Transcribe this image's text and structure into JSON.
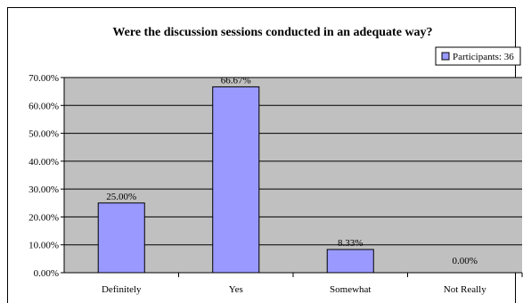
{
  "chart_data": {
    "type": "bar",
    "title": "Were the discussion sessions conducted in an adequate way?",
    "categories": [
      "Definitely",
      "Yes",
      "Somewhat",
      "Not Really"
    ],
    "series": [
      {
        "name": "Participants: 36",
        "values": [
          25.0,
          66.67,
          8.33,
          0.0
        ]
      }
    ],
    "data_labels": [
      "25.00%",
      "66.67%",
      "8.33%",
      "0.00%"
    ],
    "y_ticks": [
      "0.00%",
      "10.00%",
      "20.00%",
      "30.00%",
      "40.00%",
      "50.00%",
      "60.00%",
      "70.00%"
    ],
    "ylim": [
      0,
      70
    ],
    "grid": true,
    "legend_position": "top-right",
    "colors": {
      "bar": "#9999ff",
      "plot_background": "#c0c0c0",
      "grid": "#000000"
    }
  }
}
